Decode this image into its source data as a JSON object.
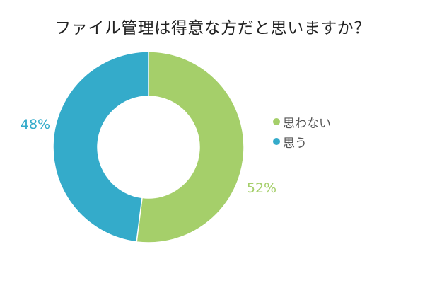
{
  "chart_data": {
    "type": "pie",
    "title": "ファイル管理は得意な方だと思いますか？",
    "donut": true,
    "slices": [
      {
        "label": "思わない",
        "value": 52,
        "display": "52%",
        "color": "#a5cf6a"
      },
      {
        "label": "思う",
        "value": 48,
        "display": "48%",
        "color": "#34abca"
      }
    ],
    "legend_position": "right",
    "legend": [
      "思わない",
      "思う"
    ]
  }
}
